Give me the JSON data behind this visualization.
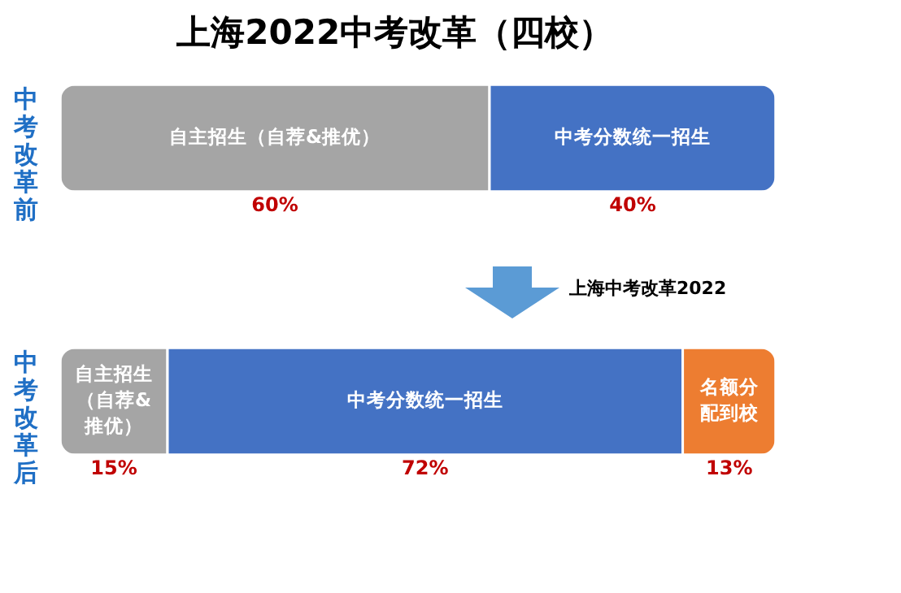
{
  "chart_data": {
    "type": "bar",
    "orientation": "horizontal",
    "stacked": true,
    "title": "上海2022中考改革（四校）",
    "categories": [
      "中考改革前",
      "中考改革后"
    ],
    "series": [
      {
        "name": "自主招生（自荐&推优）",
        "color": "#a5a5a5",
        "values": [
          60,
          15
        ],
        "value_labels": [
          "60%",
          "15%"
        ]
      },
      {
        "name": "中考分数统一招生",
        "color": "#4472c4",
        "values": [
          40,
          72
        ],
        "value_labels": [
          "40%",
          "72%"
        ]
      },
      {
        "name": "名额分配到校",
        "color": "#ed7d31",
        "values": [
          null,
          13
        ],
        "value_labels": [
          null,
          "13%"
        ]
      }
    ],
    "tick_labels": "y",
    "legend": false,
    "grid": false,
    "annotations": [
      "上海中考改革2022"
    ]
  }
}
